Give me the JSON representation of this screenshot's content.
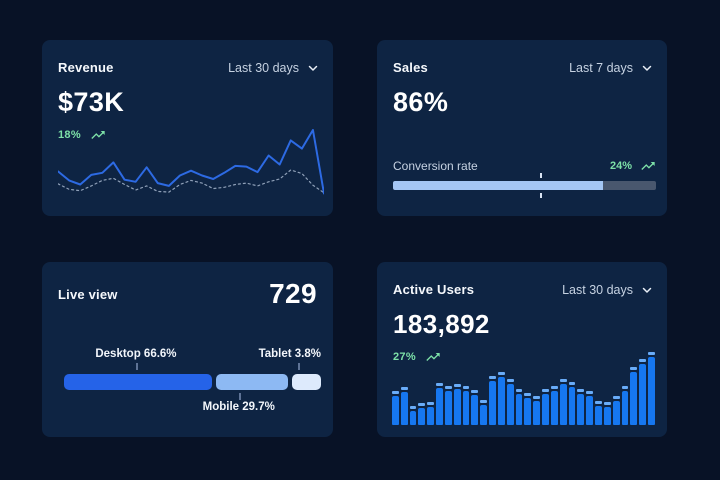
{
  "colors": {
    "page_bg": "#081226",
    "card_bg": "#0e2443",
    "accent_blue": "#2d6ae3",
    "bar_blue": "#1677f0",
    "bar_cap_blue": "#69acf8",
    "progress_fill": "#a4c6f4",
    "progress_track": "#49576e",
    "positive_green": "#7de1a8",
    "muted_text": "#c6d2e2",
    "dotted_line": "#8fa0b8",
    "desktop_segment": "#2563e8",
    "mobile_segment": "#8db9f3",
    "tablet_segment": "#ddeafc"
  },
  "cards": {
    "revenue": {
      "title": "Revenue",
      "range_label": "Last 30 days",
      "value": "$73K",
      "delta": "18%"
    },
    "sales": {
      "title": "Sales",
      "range_label": "Last 7 days",
      "value": "86%",
      "metric_label": "Conversion rate",
      "delta": "24%"
    },
    "live_view": {
      "title": "Live view",
      "value": "729",
      "labels": {
        "desktop": "Desktop 66.6%",
        "mobile": "Mobile 29.7%",
        "tablet": "Tablet 3.8%"
      }
    },
    "active_users": {
      "title": "Active Users",
      "range_label": "Last 30 days",
      "value": "183,892",
      "delta": "27%"
    }
  },
  "chart_data": [
    {
      "id": "revenue-trend",
      "type": "line",
      "title": "Revenue - Last 30 days",
      "ylim": [
        0,
        100
      ],
      "note": "no axes or tick labels shown; values are relative heights (%) ending in a tall spike then sharp drop",
      "series": [
        {
          "name": "current",
          "style": "solid",
          "values": [
            40,
            27,
            21,
            35,
            38,
            53,
            28,
            25,
            46,
            23,
            19,
            34,
            41,
            34,
            29,
            38,
            48,
            47,
            39,
            63,
            50,
            85,
            73,
            100,
            8
          ]
        },
        {
          "name": "previous",
          "style": "dotted",
          "values": [
            22,
            14,
            12,
            19,
            27,
            30,
            21,
            13,
            19,
            11,
            10,
            21,
            27,
            23,
            15,
            17,
            21,
            23,
            19,
            25,
            29,
            42,
            37,
            20,
            9
          ]
        }
      ]
    },
    {
      "id": "sales-conversion",
      "type": "bar",
      "title": "Conversion rate progress",
      "value_label": "86%",
      "fill_pct": 80,
      "marker_pct": 56
    },
    {
      "id": "live-view-devices",
      "type": "bar",
      "subtype": "stacked-horizontal",
      "categories": [
        "Desktop",
        "Mobile",
        "Tablet"
      ],
      "values": [
        66.6,
        29.7,
        3.8
      ],
      "visual_pct": [
        57,
        28,
        11
      ],
      "tick_pct": [
        28,
        68,
        91
      ]
    },
    {
      "id": "active-users-daily",
      "type": "bar",
      "title": "Active Users - Last 30 days",
      "ylim": [
        0,
        100
      ],
      "note": "30 daily bars, relative heights (%), rising strongly at the right edge",
      "values": [
        42,
        48,
        20,
        25,
        26,
        55,
        50,
        53,
        50,
        44,
        30,
        64,
        70,
        60,
        46,
        40,
        35,
        46,
        50,
        60,
        56,
        46,
        42,
        28,
        26,
        36,
        50,
        78,
        90,
        100
      ]
    }
  ]
}
